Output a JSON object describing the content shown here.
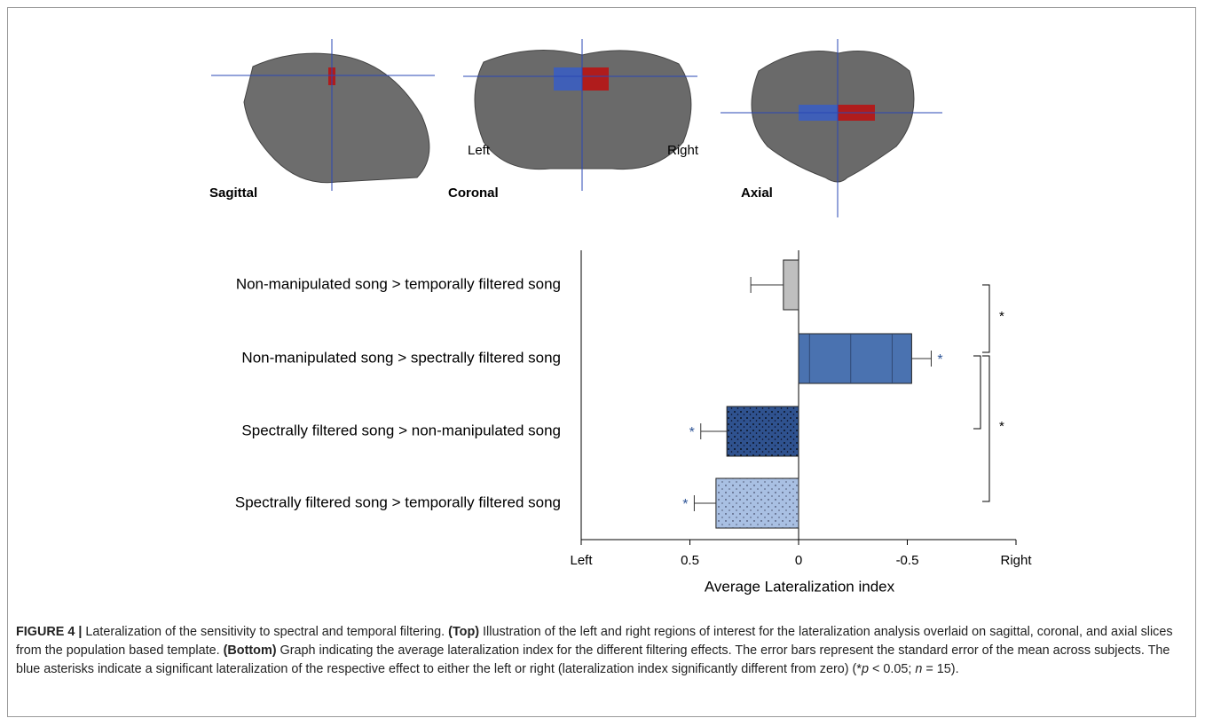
{
  "brain_panel": {
    "views": [
      "Sagittal",
      "Coronal",
      "Axial"
    ],
    "left": "Left",
    "right": "Right"
  },
  "chart_data": {
    "type": "bar",
    "orientation": "horizontal",
    "x_label": "Average Lateralization index",
    "categories": [
      "Non-manipulated song > temporally filtered song",
      "Non-manipulated song > spectrally filtered song",
      "Spectrally filtered song > non-manipulated song",
      "Spectrally filtered song > temporally filtered song"
    ],
    "values": [
      0.07,
      -0.52,
      0.33,
      0.38
    ],
    "errors": [
      0.15,
      0.09,
      0.12,
      0.1
    ],
    "colors": [
      "#bfbfbf",
      "#4a72b0",
      "#2f528f",
      "#a9c0e3"
    ],
    "significance": [
      null,
      "*",
      "*",
      "*"
    ],
    "significance_color": "#2f5597",
    "annotations": [
      "*",
      "*"
    ],
    "xlim": [
      1,
      -1
    ],
    "xticks": [
      {
        "value": 1,
        "label": "Left"
      },
      0.5,
      0,
      -0.5,
      {
        "value": -1,
        "label": "Right"
      }
    ]
  },
  "caption": [
    "FIGURE 4 |",
    " Lateralization of the sensitivity to spectral and temporal filtering. ",
    "(Top)",
    " Illustration of the left and right regions of interest for the lateralization analysis overlaid on sagittal, coronal, and axial slices from the population based template. ",
    "(Bottom)",
    " Graph indicating the average lateralization index for the different filtering effects. The error bars represent the standard error of the mean across subjects. The blue asterisks indicate a significant lateralization of the respective effect to either the left or right (lateralization index significantly different from zero) (*",
    "p",
    " < 0.05; ",
    "n",
    " = 15)."
  ]
}
